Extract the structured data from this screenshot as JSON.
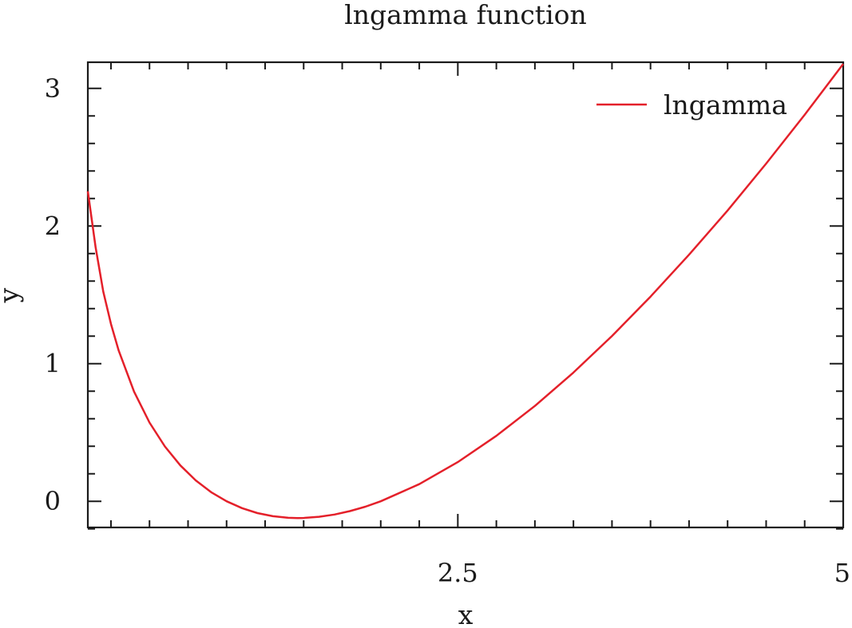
{
  "chart_data": {
    "type": "line",
    "title": "lngamma function",
    "xlabel": "x",
    "ylabel": "y",
    "xlim": [
      0.1,
      5.0
    ],
    "ylim": [
      -0.19,
      3.19
    ],
    "x_ticks_major": [
      2.5,
      5
    ],
    "x_tick_labels": [
      "2.5",
      "5"
    ],
    "x_ticks_minor": [
      0.25,
      0.5,
      0.75,
      1.0,
      1.25,
      1.5,
      1.75,
      2.0,
      2.25,
      2.75,
      3.0,
      3.25,
      3.5,
      3.75,
      4.0,
      4.25,
      4.5,
      4.75
    ],
    "y_ticks_major": [
      0,
      1,
      2,
      3
    ],
    "y_tick_labels": [
      "0",
      "1",
      "2",
      "3"
    ],
    "y_ticks_minor": [
      -0.2,
      0.2,
      0.4,
      0.6,
      0.8,
      1.2,
      1.4,
      1.6,
      1.8,
      2.2,
      2.4,
      2.6,
      2.8
    ],
    "grid": false,
    "legend_position": "top-right",
    "series": [
      {
        "name": "lngamma",
        "color": "#e4202a",
        "x": [
          0.1,
          0.15,
          0.2,
          0.25,
          0.3,
          0.4,
          0.5,
          0.6,
          0.7,
          0.8,
          0.9,
          1.0,
          1.1,
          1.2,
          1.3,
          1.4,
          1.46,
          1.5,
          1.6,
          1.7,
          1.8,
          1.9,
          2.0,
          2.25,
          2.5,
          2.75,
          3.0,
          3.25,
          3.5,
          3.75,
          4.0,
          4.25,
          4.5,
          4.75,
          5.0
        ],
        "y": [
          2.2527,
          1.8466,
          1.5241,
          1.288,
          1.0958,
          0.7966,
          0.5724,
          0.3982,
          0.2609,
          0.1521,
          0.0663,
          0.0,
          -0.0498,
          -0.0854,
          -0.1082,
          -0.1196,
          -0.1215,
          -0.1208,
          -0.1126,
          -0.0958,
          -0.0711,
          -0.039,
          0.0,
          0.1248,
          0.2847,
          0.4753,
          0.6931,
          0.9354,
          1.201,
          1.4875,
          1.7918,
          2.113,
          2.4537,
          2.8078,
          3.1781
        ]
      }
    ]
  }
}
